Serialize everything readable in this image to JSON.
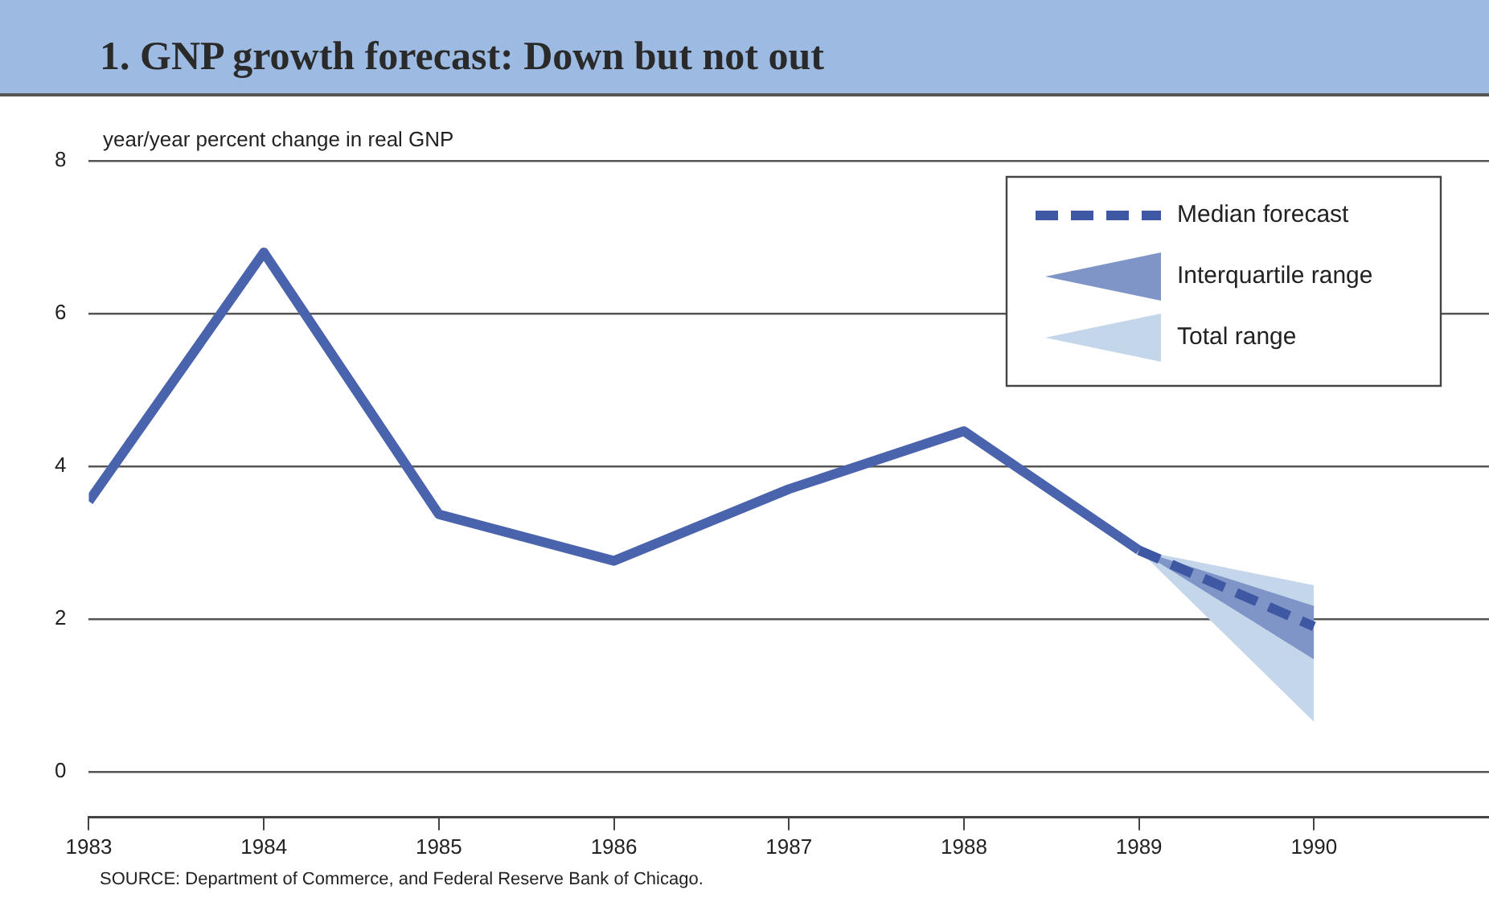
{
  "chart_data": {
    "type": "line",
    "title": "1. GNP growth forecast: Down but not out",
    "ylabel": "year/year percent change in real GNP",
    "x": [
      1983,
      1984,
      1985,
      1986,
      1987,
      1988,
      1989,
      1990
    ],
    "series": [
      {
        "color": "#4a63ad",
        "values": [
          3.54,
          6.8,
          3.37,
          2.76,
          3.7,
          4.46,
          2.9,
          null
        ]
      },
      {
        "name": "Median forecast",
        "type": "line",
        "line_style": "dashed",
        "color": "#3f58a3",
        "values": [
          null,
          null,
          null,
          null,
          null,
          null,
          2.9,
          1.9
        ]
      },
      {
        "name": "Interquartile range",
        "type": "area",
        "color": "#7f95c8",
        "values": [
          null,
          null,
          null,
          null,
          null,
          null,
          null,
          null
        ],
        "lower": [
          null,
          null,
          null,
          null,
          null,
          null,
          2.9,
          1.47
        ],
        "upper": [
          null,
          null,
          null,
          null,
          null,
          null,
          2.9,
          2.17
        ]
      },
      {
        "name": "Total range",
        "type": "area",
        "color": "#c4d6ea",
        "values": [
          null,
          null,
          null,
          null,
          null,
          null,
          null,
          null
        ],
        "lower": [
          null,
          null,
          null,
          null,
          null,
          null,
          2.9,
          0.65
        ],
        "upper": [
          null,
          null,
          null,
          null,
          null,
          null,
          2.9,
          2.44
        ]
      }
    ],
    "xlim": [
      1983,
      1991
    ],
    "xticks": [
      1983,
      1984,
      1985,
      1986,
      1987,
      1988,
      1989,
      1990
    ],
    "ylim": [
      -0.6,
      8
    ],
    "yticks": [
      0,
      2,
      4,
      6,
      8
    ],
    "grid": "y",
    "legend": "top right",
    "line_style": "solid",
    "annotations": [
      "SOURCE: Department of Commerce, and Federal Reserve Bank of Chicago."
    ]
  }
}
